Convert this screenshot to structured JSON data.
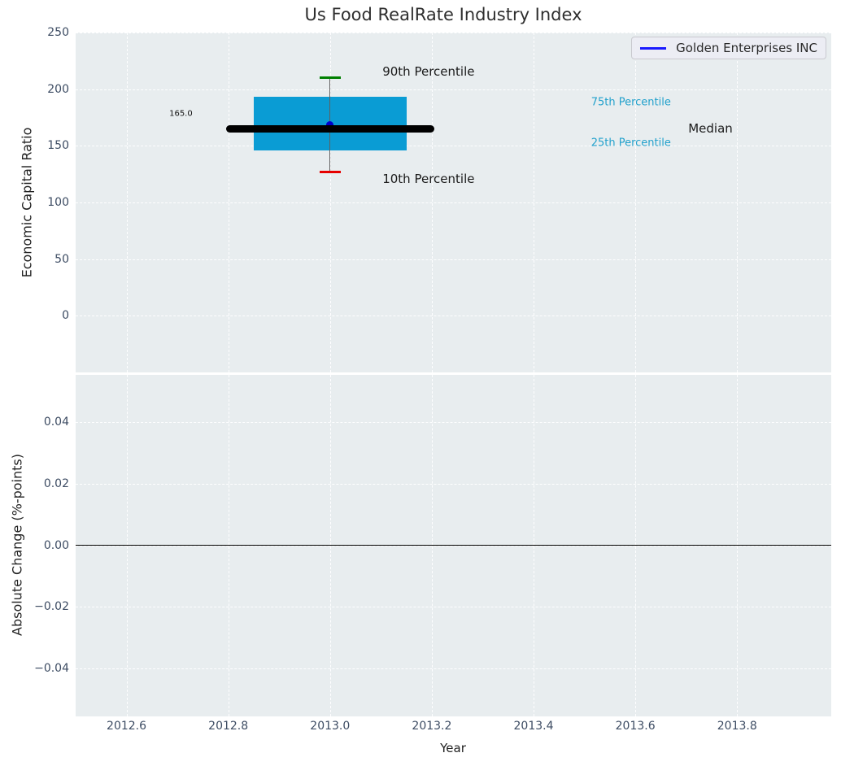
{
  "title": "Us Food RealRate Industry Index",
  "legend": {
    "label": "Golden Enterprises INC"
  },
  "colors": {
    "plot_bg": "#e8edef",
    "box_fill": "#0a9cd4",
    "median_line": "#000000",
    "company_marker": "#0000cc",
    "whisker": "#606060",
    "cap_90th": "#007f00",
    "cap_10th": "#e60000",
    "legend_line": "#1a1aff",
    "annotation_cyan": "#22a1cc",
    "tick_color": "#3d4c63"
  },
  "chart_data": [
    {
      "type": "boxplot",
      "title": "Us Food RealRate Industry Index",
      "xlabel": "",
      "ylabel": "Economic Capital Ratio",
      "xlim": [
        2012.5,
        2013.985
      ],
      "ylim": [
        -50,
        250
      ],
      "grid": true,
      "legend_position": "upper right",
      "xticks": [
        2012.6,
        2012.8,
        2013.0,
        2013.2,
        2013.4,
        2013.6,
        2013.8
      ],
      "xtick_labels": [
        "2012.6",
        "2012.8",
        "2013.0",
        "2013.2",
        "2013.4",
        "2013.6",
        "2013.8"
      ],
      "show_xtick_labels": false,
      "yticks": [
        250,
        200,
        150,
        100,
        50,
        0
      ],
      "ytick_labels": [
        "250",
        "200",
        "150",
        "100",
        "50",
        "0"
      ],
      "box": {
        "series_name": "Golden Enterprises INC",
        "x": 2013.0,
        "p10": 127,
        "p25": 146,
        "median": 165,
        "p75": 193,
        "p90": 210,
        "company_value": 165.0,
        "box_halfwidth": 0.15,
        "median_halfwidth": 0.2,
        "cap_halfwidth": 0.021
      },
      "annotations": [
        {
          "text": "90th Percentile",
          "x": 2013.103,
          "y": 215.5,
          "style": "dark"
        },
        {
          "text": "10th Percentile",
          "x": 2013.103,
          "y": 121.0,
          "style": "dark"
        },
        {
          "text": "75th Percentile",
          "x": 2013.513,
          "y": 188.3,
          "style": "cyan"
        },
        {
          "text": "25th Percentile",
          "x": 2013.513,
          "y": 152.5,
          "style": "cyan"
        },
        {
          "text": "Median",
          "x": 2013.704,
          "y": 165.3,
          "style": "dark"
        },
        {
          "text": "165.0",
          "x": 2012.684,
          "y": 178.2,
          "style": "value"
        }
      ]
    },
    {
      "type": "line",
      "title": "",
      "xlabel": "Year",
      "ylabel": "Absolute Change (%-points)",
      "xlim": [
        2012.5,
        2013.985
      ],
      "ylim": [
        -0.0556,
        0.0554
      ],
      "grid": true,
      "xticks": [
        2012.6,
        2012.8,
        2013.0,
        2013.2,
        2013.4,
        2013.6,
        2013.8
      ],
      "xtick_labels": [
        "2012.6",
        "2012.8",
        "2013.0",
        "2013.2",
        "2013.4",
        "2013.6",
        "2013.8"
      ],
      "show_xtick_labels": true,
      "yticks": [
        0.04,
        0.02,
        0.0,
        -0.02,
        -0.04
      ],
      "ytick_labels": [
        "0.04",
        "0.02",
        "0.00",
        "−0.02",
        "−0.04"
      ],
      "zero_line": 0.0,
      "series": []
    }
  ]
}
